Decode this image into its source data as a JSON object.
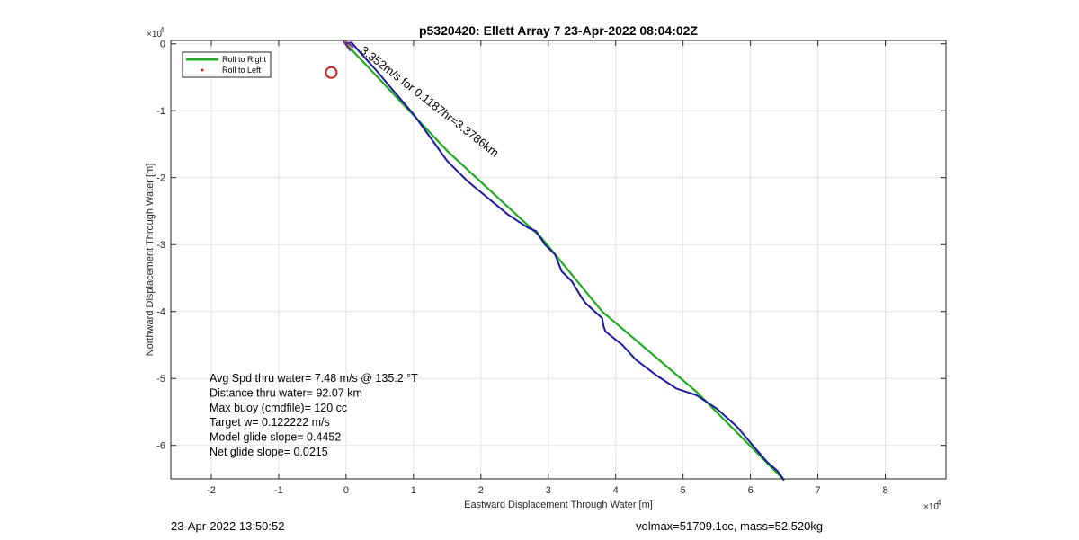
{
  "chart_data": {
    "type": "line",
    "title": "p5320420: Ellett Array 7 23-Apr-2022 08:04:02Z",
    "xlabel": "Eastward Displacement Through Water [m]",
    "ylabel": "Northward Displacement Through Water [m]",
    "x_exponent_label": "×10",
    "x_exponent_power": "4",
    "y_exponent_label": "×10",
    "y_exponent_power": "4",
    "xlim": [
      -2.6,
      8.9
    ],
    "ylim": [
      -6.5,
      0.05
    ],
    "xticks": [
      -2,
      -1,
      0,
      1,
      2,
      3,
      4,
      5,
      6,
      7,
      8
    ],
    "yticks": [
      0,
      -1,
      -2,
      -3,
      -4,
      -5,
      -6
    ],
    "grid": true,
    "legend_position": "top-left",
    "series": [
      {
        "name": "Roll to Right",
        "color": "#22aa22",
        "x": [
          0,
          1.5,
          2.9,
          3.8,
          5.2,
          6.5
        ],
        "y": [
          0,
          -1.6,
          -2.9,
          -4.0,
          -5.2,
          -6.52
        ]
      },
      {
        "name": "Roll to Left",
        "color": "#cc2222",
        "x": [
          -0.22
        ],
        "y": [
          -0.43
        ]
      },
      {
        "name": "",
        "color": "#1a1aa0",
        "x": [
          0,
          0.08,
          0.2,
          0.45,
          0.7,
          1.0,
          1.25,
          1.5,
          1.8,
          2.1,
          2.4,
          2.7,
          2.82,
          2.95,
          3.1,
          3.2,
          3.35,
          3.5,
          3.55,
          3.8,
          3.82,
          3.85,
          4.1,
          4.3,
          4.6,
          4.9,
          5.2,
          5.5,
          5.8,
          6.05,
          6.25,
          6.4,
          6.5
        ],
        "y": [
          0,
          0.02,
          -0.12,
          -0.4,
          -0.7,
          -1.05,
          -1.4,
          -1.75,
          -2.05,
          -2.3,
          -2.55,
          -2.75,
          -2.8,
          -3.0,
          -3.15,
          -3.4,
          -3.55,
          -3.8,
          -3.87,
          -4.1,
          -4.22,
          -4.3,
          -4.5,
          -4.72,
          -4.95,
          -5.15,
          -5.25,
          -5.45,
          -5.72,
          -6.02,
          -6.25,
          -6.38,
          -6.52
        ]
      }
    ],
    "annotations": [
      {
        "text": "3.352m/s for 0.1187hr=3.3786km",
        "x": 0.2,
        "y": -0.12,
        "rotation": 38
      }
    ],
    "text_block": [
      "Avg Spd thru water=  7.48 m/s @ 135.2 °T",
      "Distance thru water= 92.07 km",
      "Max buoy (cmdfile)= 120 cc",
      "Target w= 0.122222 m/s",
      "Model glide slope= 0.4452",
      "Net glide slope= 0.0215"
    ]
  },
  "footer": {
    "left": "23-Apr-2022 13:50:52",
    "right": "volmax=51709.1cc, mass=52.520kg"
  }
}
